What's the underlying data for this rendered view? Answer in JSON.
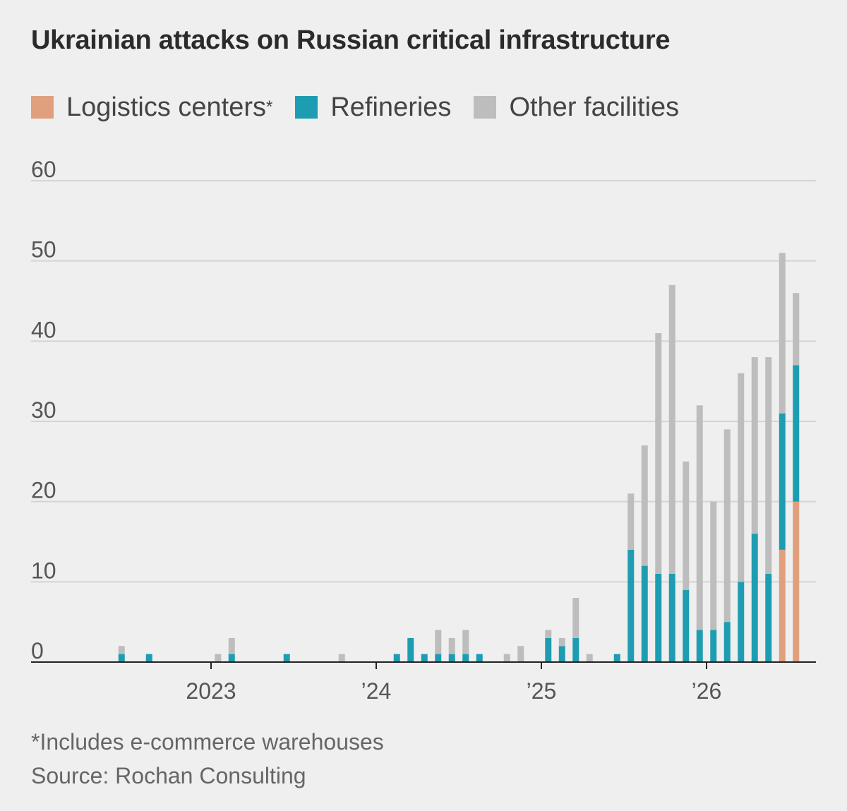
{
  "chart_data": {
    "type": "bar",
    "stacked": true,
    "title": "Ukrainian attacks on Russian critical infrastructure",
    "ylim": [
      0,
      60
    ],
    "yticks": [
      0,
      10,
      20,
      30,
      40,
      50,
      60
    ],
    "xtick_labels": [
      "2023",
      "’24",
      "’25",
      "’26"
    ],
    "grid": true,
    "legend_position": "top",
    "series": [
      {
        "name": "Logistics centers",
        "color": "#e0a07e"
      },
      {
        "name": "Refineries",
        "color": "#1e9db2"
      },
      {
        "name": "Other facilities",
        "color": "#bdbdbd"
      }
    ],
    "bars": [
      {
        "period": "2022-06",
        "logistics": 0,
        "refineries": 1,
        "other": 1
      },
      {
        "period": "2022-08",
        "logistics": 0,
        "refineries": 1,
        "other": 0
      },
      {
        "period": "2023-01",
        "logistics": 0,
        "refineries": 0,
        "other": 1
      },
      {
        "period": "2023-02",
        "logistics": 0,
        "refineries": 1,
        "other": 2
      },
      {
        "period": "2023-06",
        "logistics": 0,
        "refineries": 1,
        "other": 0
      },
      {
        "period": "2023-10",
        "logistics": 0,
        "refineries": 0,
        "other": 1
      },
      {
        "period": "2024-02",
        "logistics": 0,
        "refineries": 1,
        "other": 0
      },
      {
        "period": "2024-03",
        "logistics": 0,
        "refineries": 3,
        "other": 0
      },
      {
        "period": "2024-04",
        "logistics": 0,
        "refineries": 1,
        "other": 0
      },
      {
        "period": "2024-05",
        "logistics": 0,
        "refineries": 1,
        "other": 3
      },
      {
        "period": "2024-06",
        "logistics": 0,
        "refineries": 1,
        "other": 2
      },
      {
        "period": "2024-07",
        "logistics": 0,
        "refineries": 1,
        "other": 3
      },
      {
        "period": "2024-08",
        "logistics": 0,
        "refineries": 1,
        "other": 0
      },
      {
        "period": "2024-10",
        "logistics": 0,
        "refineries": 0,
        "other": 1
      },
      {
        "period": "2024-11",
        "logistics": 0,
        "refineries": 0,
        "other": 2
      },
      {
        "period": "2025-01",
        "logistics": 0,
        "refineries": 3,
        "other": 1
      },
      {
        "period": "2025-02",
        "logistics": 0,
        "refineries": 2,
        "other": 1
      },
      {
        "period": "2025-03",
        "logistics": 0,
        "refineries": 3,
        "other": 5
      },
      {
        "period": "2025-04",
        "logistics": 0,
        "refineries": 0,
        "other": 1
      },
      {
        "period": "2025-06",
        "logistics": 0,
        "refineries": 1,
        "other": 0
      },
      {
        "period": "2025-07",
        "logistics": 0,
        "refineries": 14,
        "other": 7
      },
      {
        "period": "2025-08",
        "logistics": 0,
        "refineries": 12,
        "other": 15
      },
      {
        "period": "2025-09",
        "logistics": 0,
        "refineries": 11,
        "other": 30
      },
      {
        "period": "2025-10",
        "logistics": 0,
        "refineries": 11,
        "other": 36
      },
      {
        "period": "2025-11",
        "logistics": 0,
        "refineries": 9,
        "other": 16
      },
      {
        "period": "2025-12",
        "logistics": 0,
        "refineries": 4,
        "other": 28
      },
      {
        "period": "2026-01",
        "logistics": 0,
        "refineries": 4,
        "other": 16
      },
      {
        "period": "2026-02",
        "logistics": 0,
        "refineries": 5,
        "other": 24
      },
      {
        "period": "2026-03",
        "logistics": 0,
        "refineries": 10,
        "other": 26
      },
      {
        "period": "2026-04",
        "logistics": 0,
        "refineries": 16,
        "other": 22
      },
      {
        "period": "2026-05",
        "logistics": 0,
        "refineries": 11,
        "other": 27
      },
      {
        "period": "2026-06",
        "logistics": 14,
        "refineries": 17,
        "other": 20
      },
      {
        "period": "2026-07",
        "logistics": 20,
        "refineries": 17,
        "other": 9
      }
    ]
  },
  "legend": {
    "logistics_label": "Logistics centers",
    "logistics_marker": "*",
    "refineries_label": "Refineries",
    "other_label": "Other facilities"
  },
  "footnote": "*Includes e-commerce warehouses",
  "source": "Source: Rochan Consulting"
}
